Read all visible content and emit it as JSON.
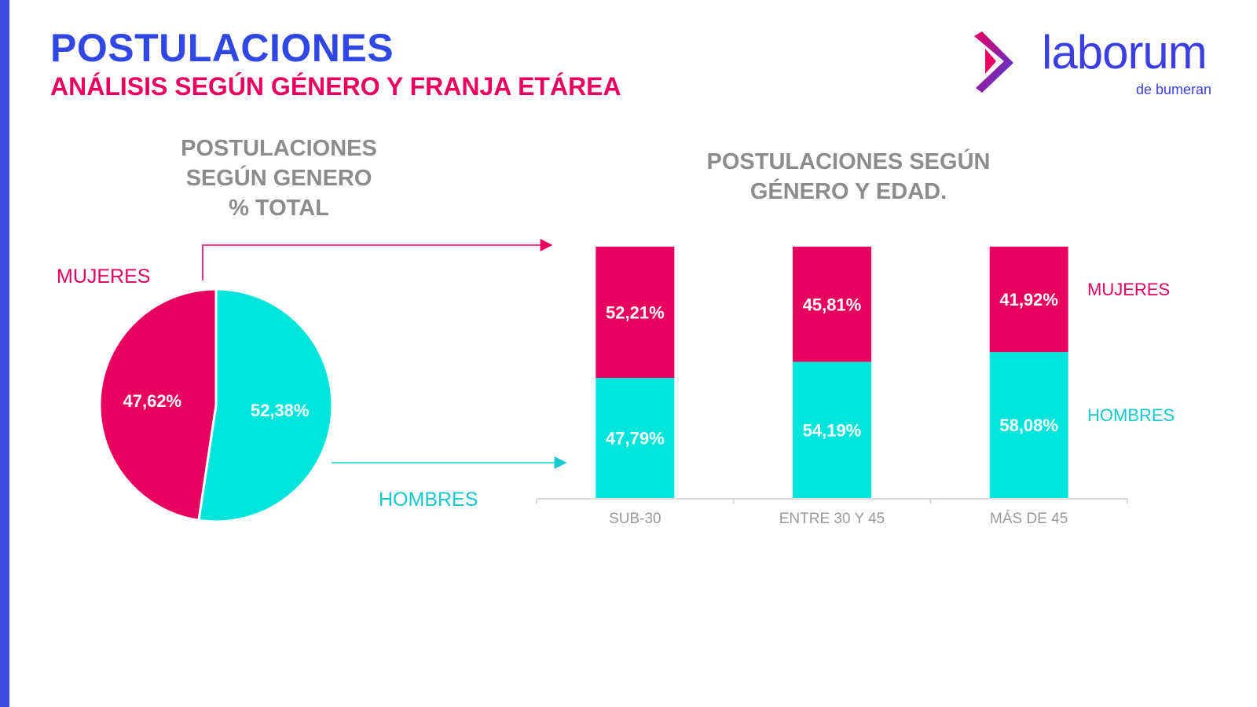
{
  "header": {
    "title": "POSTULACIONES",
    "subtitle": "ANÁLISIS SEGÚN GÉNERO Y FRANJA ETÁREA"
  },
  "logo": {
    "word": "laborum",
    "sub": "de bumeran"
  },
  "colors": {
    "mujeres": "#e8005f",
    "hombres": "#00e5db",
    "accent": "#3147e3",
    "gray": "#8c8c8c"
  },
  "chart_data": [
    {
      "type": "pie",
      "title_lines": [
        "POSTULACIONES",
        "SEGÚN GENERO",
        "% TOTAL"
      ],
      "labels": [
        "MUJERES",
        "HOMBRES"
      ],
      "values": [
        47.62,
        52.38
      ],
      "value_labels": [
        "47,62%",
        "52,38%"
      ]
    },
    {
      "type": "bar",
      "stacked": true,
      "title_lines": [
        "POSTULACIONES SEGÚN",
        "GÉNERO Y EDAD."
      ],
      "categories": [
        "SUB-30",
        "ENTRE 30 Y 45",
        "MÁS DE 45"
      ],
      "series": [
        {
          "name": "HOMBRES",
          "values": [
            47.79,
            54.19,
            58.08
          ],
          "value_labels": [
            "47,79%",
            "54,19%",
            "58,08%"
          ]
        },
        {
          "name": "MUJERES",
          "values": [
            52.21,
            45.81,
            41.92
          ],
          "value_labels": [
            "52,21%",
            "45,81%",
            "41,92%"
          ]
        }
      ],
      "ylim": [
        0,
        100
      ],
      "legend": "right"
    }
  ]
}
